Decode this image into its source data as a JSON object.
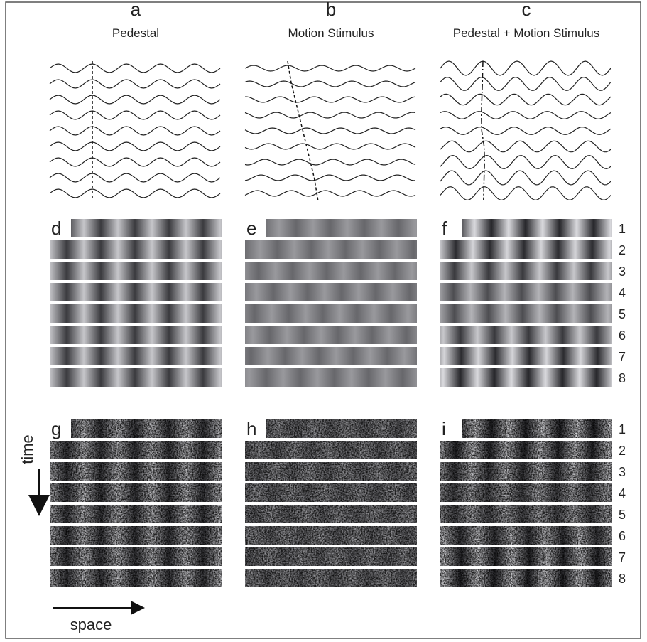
{
  "columns": [
    {
      "letter": "a",
      "title": "Pedestal"
    },
    {
      "letter": "b",
      "title": "Motion Stimulus"
    },
    {
      "letter": "c",
      "title": "Pedestal + Motion Stimulus"
    }
  ],
  "grating_panels": [
    "d",
    "e",
    "f"
  ],
  "noise_panels": [
    "g",
    "h",
    "i"
  ],
  "frame_numbers": [
    "1",
    "2",
    "3",
    "4",
    "5",
    "6",
    "7",
    "8"
  ],
  "axes": {
    "time": "time",
    "space": "space"
  }
}
